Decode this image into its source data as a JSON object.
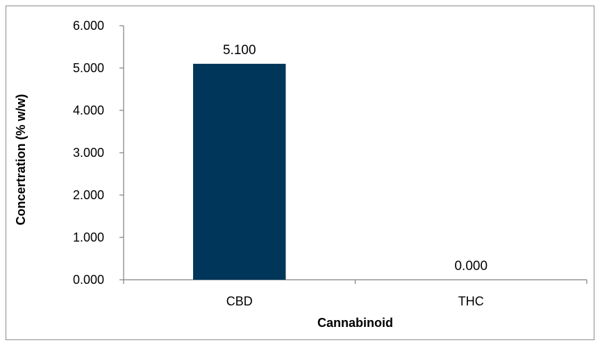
{
  "chart_data": {
    "type": "bar",
    "categories": [
      "CBD",
      "THC"
    ],
    "values": [
      5.1,
      0.0
    ],
    "data_labels": [
      "5.100",
      "0.000"
    ],
    "xlabel": "Cannabinoid",
    "ylabel": "Concertration (% w/w)",
    "ylim": [
      0,
      6
    ],
    "yticks": [
      0,
      1,
      2,
      3,
      4,
      5,
      6
    ],
    "ytick_labels": [
      "0.000",
      "1.000",
      "2.000",
      "3.000",
      "4.000",
      "5.000",
      "6.000"
    ],
    "grid": false,
    "legend": "none",
    "bar_color": "#003659",
    "axis_color": "#808080"
  }
}
